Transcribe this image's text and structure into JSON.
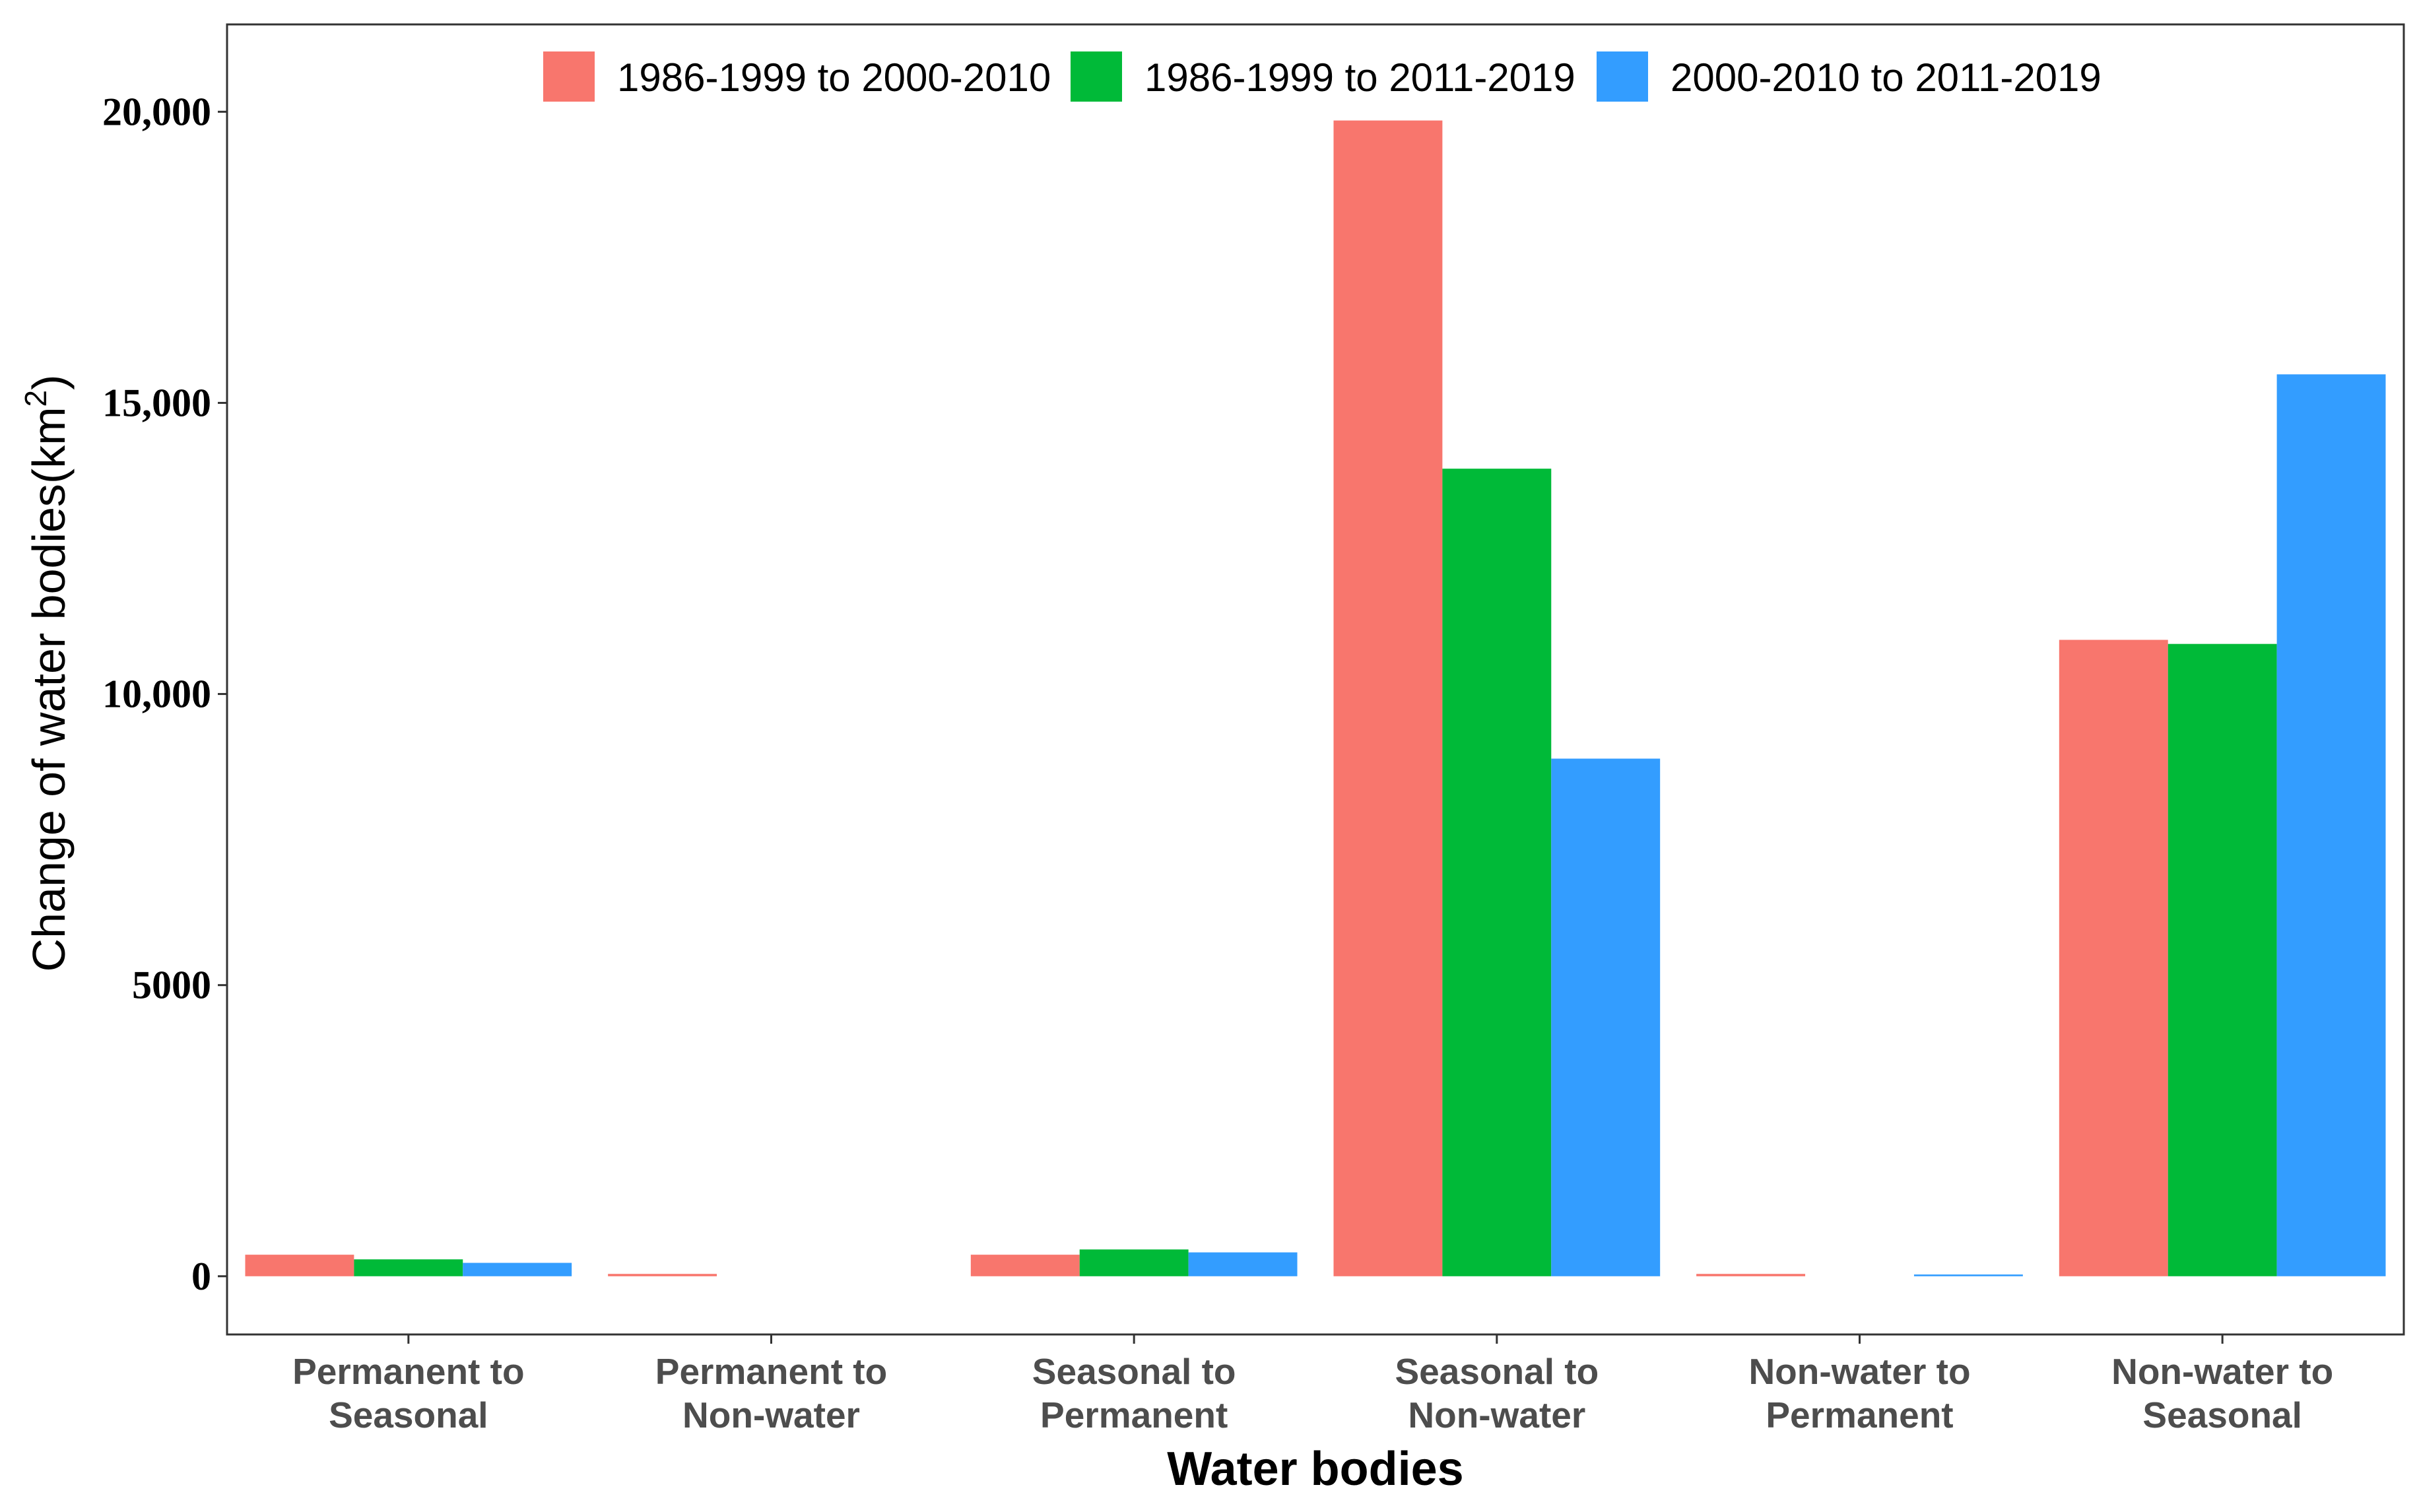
{
  "chart_data": {
    "type": "bar",
    "title": "",
    "xlabel": "Water bodies",
    "ylabel": "Change of water bodies(km",
    "ylabel_superscript": "2",
    "ylabel_close": ")",
    "ylim": [
      -1000,
      21500
    ],
    "yticks": [
      {
        "value": 0,
        "label": "0"
      },
      {
        "value": 5000,
        "label": "5000"
      },
      {
        "value": 10000,
        "label": "10,000"
      },
      {
        "value": 15000,
        "label": "15,000"
      },
      {
        "value": 20000,
        "label": "20,000"
      }
    ],
    "categories": [
      [
        "Permanent to",
        "Seasonal"
      ],
      [
        "Permanent to",
        "Non-water"
      ],
      [
        "Seasonal to",
        "Permanent"
      ],
      [
        "Seasonal to",
        "Non-water"
      ],
      [
        "Non-water to",
        "Permanent"
      ],
      [
        "Non-water to",
        "Seasonal"
      ]
    ],
    "series": [
      {
        "name": "1986-1999 to 2000-2010",
        "color": "#F8766D",
        "values": [
          370,
          40,
          370,
          19850,
          40,
          10930
        ]
      },
      {
        "name": "1986-1999 to 2011-2019",
        "color": "#00BA38",
        "values": [
          290,
          0,
          460,
          13870,
          0,
          10860
        ]
      },
      {
        "name": "2000-2010 to 2011-2019",
        "color": "#339DFF",
        "values": [
          230,
          0,
          410,
          8890,
          30,
          15490
        ]
      }
    ],
    "legend_position": "top",
    "grid": false
  }
}
